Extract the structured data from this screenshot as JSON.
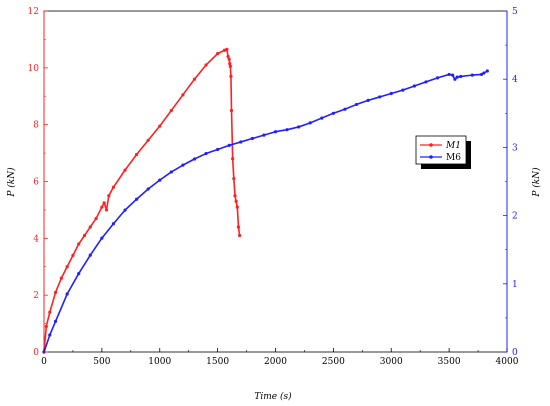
{
  "chart_data": {
    "type": "line",
    "xlabel": "Time (s)",
    "ylabel_left": "P (kN)",
    "ylabel_right": "P (kN)",
    "xlim": [
      0,
      4000
    ],
    "ylim_left": [
      0,
      12
    ],
    "ylim_right": [
      0,
      5
    ],
    "x_ticks": [
      0,
      500,
      1000,
      1500,
      2000,
      2500,
      3000,
      3500,
      4000
    ],
    "y_ticks_left": [
      0,
      2,
      4,
      6,
      8,
      10,
      12
    ],
    "y_ticks_right": [
      0,
      1,
      2,
      3,
      4,
      5
    ],
    "grid": false,
    "legend_position": "right",
    "series": [
      {
        "name": "M1",
        "axis": "left",
        "color": "#ff2020",
        "x": [
          0,
          20,
          50,
          100,
          150,
          200,
          250,
          300,
          350,
          400,
          450,
          500,
          520,
          540,
          560,
          600,
          700,
          800,
          900,
          1000,
          1100,
          1200,
          1300,
          1400,
          1500,
          1560,
          1580,
          1590,
          1600,
          1605,
          1610,
          1615,
          1620,
          1630,
          1640,
          1650,
          1660,
          1670,
          1680,
          1690
        ],
        "y": [
          0,
          0.9,
          1.4,
          2.1,
          2.6,
          3.0,
          3.4,
          3.8,
          4.1,
          4.4,
          4.7,
          5.1,
          5.25,
          5.0,
          5.5,
          5.8,
          6.4,
          6.95,
          7.45,
          7.95,
          8.5,
          9.05,
          9.6,
          10.1,
          10.5,
          10.62,
          10.65,
          10.4,
          10.3,
          10.15,
          10.05,
          9.7,
          8.5,
          6.8,
          6.1,
          5.5,
          5.3,
          5.1,
          4.4,
          4.1
        ]
      },
      {
        "name": "M6",
        "axis": "right",
        "color": "#2020ff",
        "x": [
          0,
          50,
          100,
          200,
          300,
          400,
          500,
          600,
          700,
          800,
          900,
          1000,
          1100,
          1200,
          1300,
          1400,
          1500,
          1600,
          1700,
          1800,
          1900,
          2000,
          2100,
          2200,
          2300,
          2400,
          2500,
          2600,
          2700,
          2800,
          2900,
          3000,
          3100,
          3200,
          3300,
          3400,
          3500,
          3530,
          3550,
          3570,
          3600,
          3700,
          3780,
          3800,
          3830
        ],
        "y": [
          0,
          0.25,
          0.45,
          0.85,
          1.15,
          1.42,
          1.67,
          1.88,
          2.08,
          2.24,
          2.39,
          2.52,
          2.64,
          2.74,
          2.83,
          2.91,
          2.97,
          3.03,
          3.08,
          3.13,
          3.18,
          3.23,
          3.26,
          3.3,
          3.36,
          3.43,
          3.5,
          3.56,
          3.63,
          3.69,
          3.74,
          3.79,
          3.84,
          3.9,
          3.96,
          4.02,
          4.07,
          4.06,
          4.0,
          4.03,
          4.04,
          4.06,
          4.07,
          4.09,
          4.12
        ]
      }
    ]
  }
}
